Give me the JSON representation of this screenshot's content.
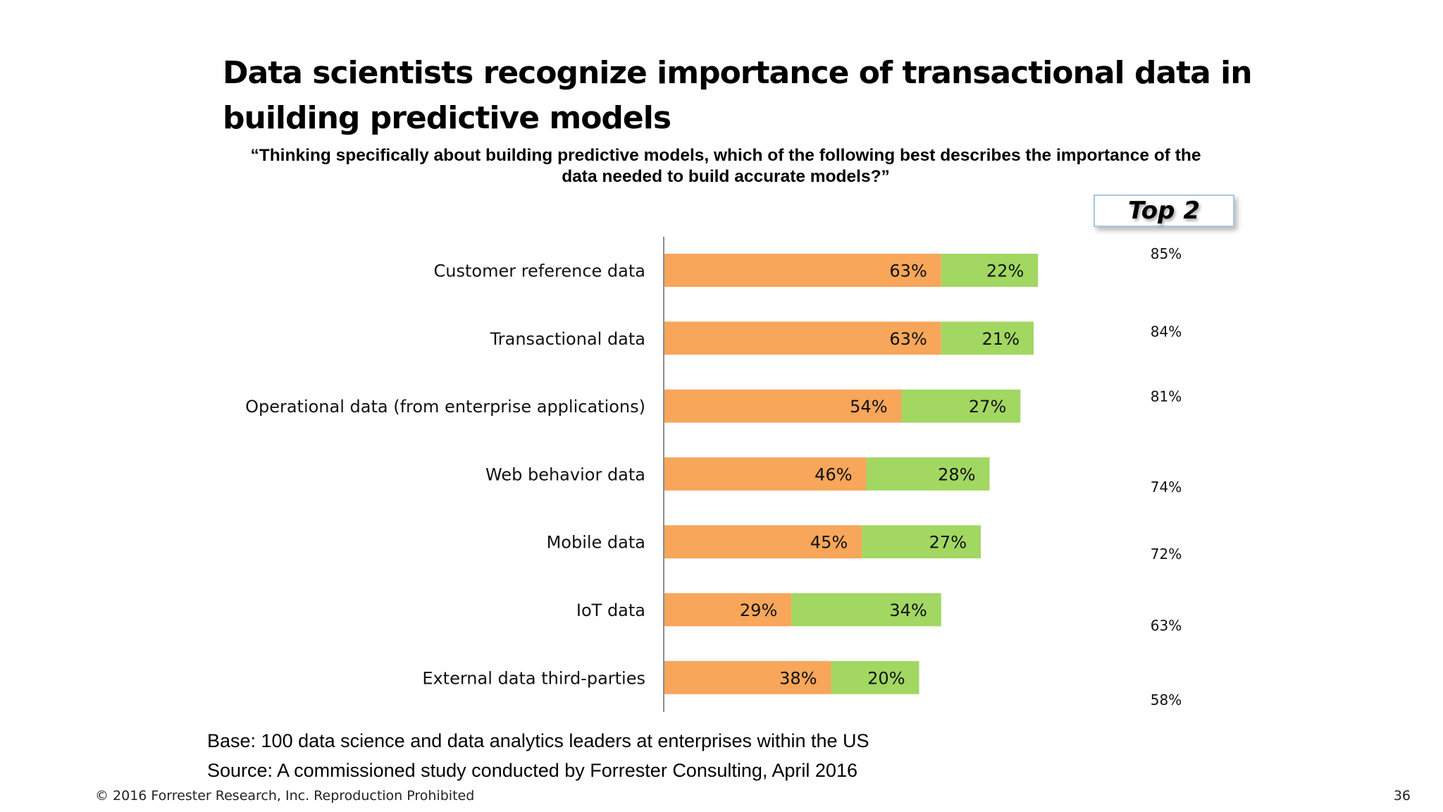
{
  "slide": {
    "title": "Data scientists recognize importance of transactional data in building predictive models",
    "question": "“Thinking specifically about building predictive models, which of the following best describes the importance of the data needed to build accurate models?”",
    "base": "Base: 100  data science and data analytics leaders at enterprises within the US",
    "source": "Source: A commissioned study conducted by Forrester Consulting, April 2016",
    "footer": "© 2016 Forrester Research, Inc. Reproduction Prohibited",
    "page_number": "36"
  },
  "chart_data": {
    "type": "bar",
    "orientation": "horizontal",
    "stacked": true,
    "categories": [
      "Customer reference data",
      "Transactional data",
      "Operational data (from enterprise applications)",
      "Web behavior data",
      "Mobile data",
      "IoT data",
      "External data third-parties"
    ],
    "series": [
      {
        "values": [
          63,
          63,
          54,
          46,
          45,
          29,
          38
        ],
        "color": "#f7a65a"
      },
      {
        "values": [
          22,
          21,
          27,
          28,
          27,
          34,
          20
        ],
        "color": "#a2d762"
      }
    ],
    "top2_header": "Top 2",
    "top2_values": [
      85,
      84,
      81,
      74,
      72,
      63,
      58
    ],
    "value_suffix": "%",
    "grid": false,
    "legend": "none"
  }
}
